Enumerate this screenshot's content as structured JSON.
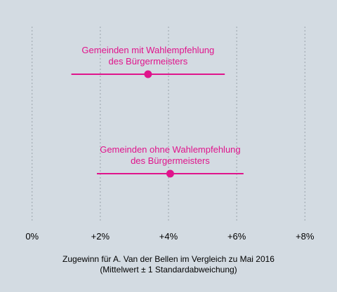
{
  "chart_data": {
    "type": "errorbar",
    "x_ticks": [
      0,
      2,
      4,
      6,
      8
    ],
    "x_tick_labels": [
      "0%",
      "+2%",
      "+4%",
      "+6%",
      "+8%"
    ],
    "xlim": [
      -0.2,
      8.2
    ],
    "grid": "vertical dashed",
    "xlabel_line1": "Zugewinn für A. Van der Bellen im Vergleich zu Mai 2016",
    "xlabel_line2": "(Mittelwert ± 1 Standardabweichung)",
    "series": [
      {
        "label_line1": "Gemeinden mit Wahlempfehlung",
        "label_line2": "des Bürgermeisters",
        "mean": 3.4,
        "low": 1.15,
        "high": 5.65
      },
      {
        "label_line1": "Gemeinden ohne Wahlempfehlung",
        "label_line2": "des Bürgermeisters",
        "mean": 4.05,
        "low": 1.9,
        "high": 6.2
      }
    ],
    "color": "#e0148c"
  }
}
